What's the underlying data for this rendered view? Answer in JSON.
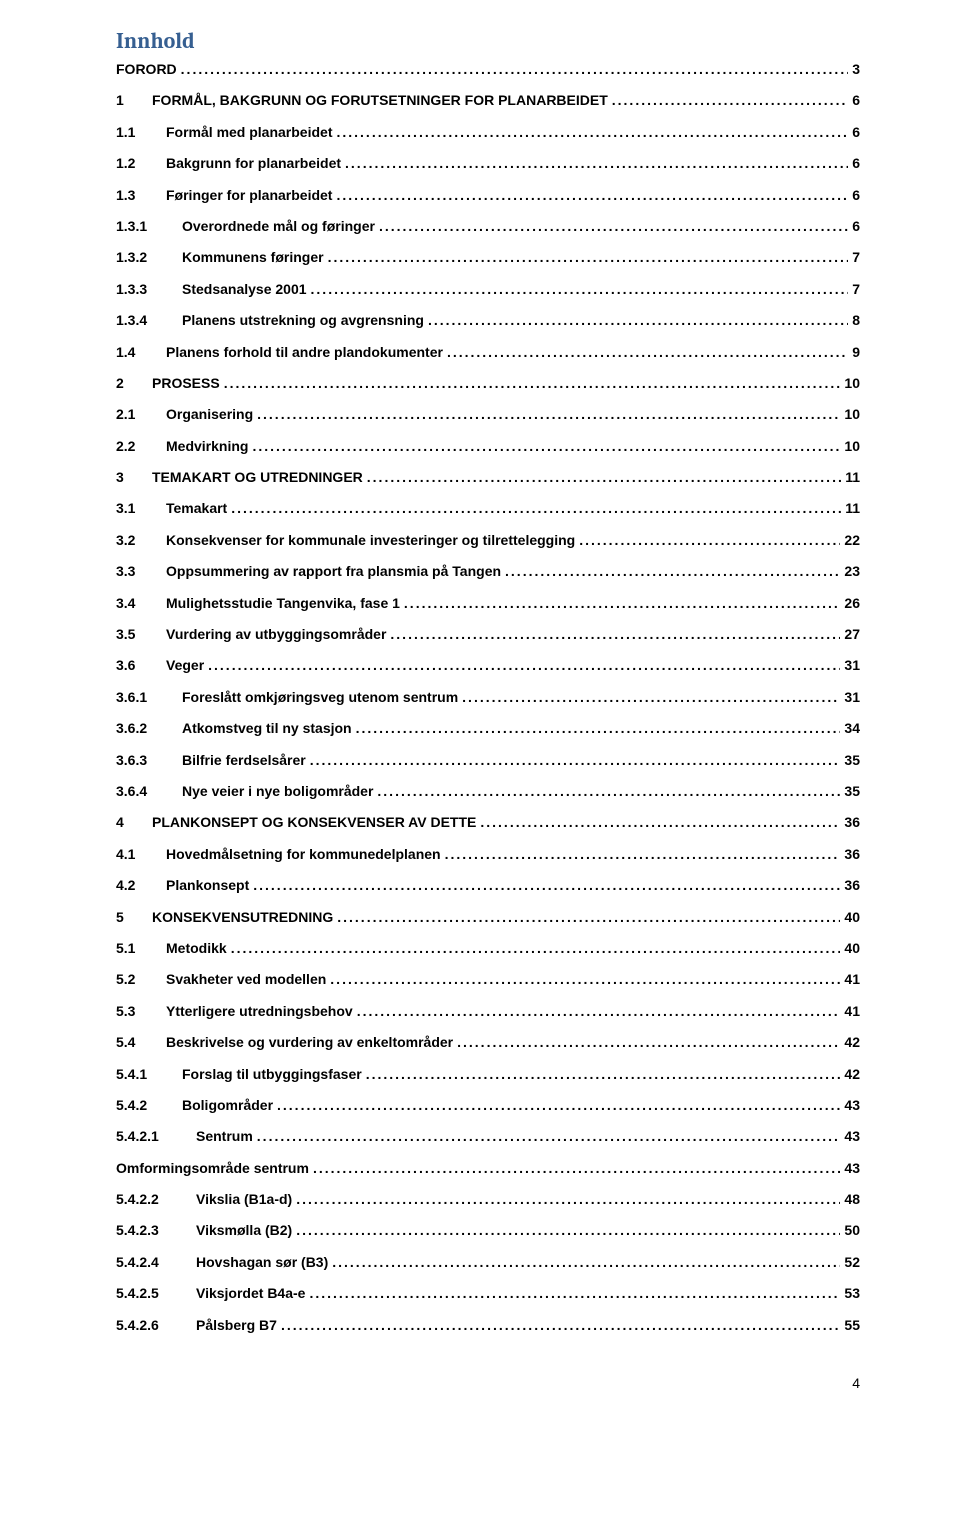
{
  "title": "Innhold",
  "footer_page": "4",
  "colors": {
    "title_color": "#365f91",
    "text_color": "#000000",
    "background": "#ffffff"
  },
  "typography": {
    "title_font": "Cambria",
    "body_font": "Arial",
    "title_size_pt": 17,
    "body_size_pt": 10.5,
    "body_weight": "bold"
  },
  "entries": [
    {
      "num": "",
      "label": "FORORD",
      "page": "3",
      "level": "level-0"
    },
    {
      "num": "1",
      "label": "FORMÅL, BAKGRUNN OG FORUTSETNINGER FOR PLANARBEIDET",
      "page": "6",
      "level": "level-1"
    },
    {
      "num": "1.1",
      "label": "Formål med planarbeidet",
      "page": "6",
      "level": "level-2"
    },
    {
      "num": "1.2",
      "label": "Bakgrunn for planarbeidet",
      "page": "6",
      "level": "level-2"
    },
    {
      "num": "1.3",
      "label": "Føringer for planarbeidet",
      "page": "6",
      "level": "level-2"
    },
    {
      "num": "1.3.1",
      "label": "Overordnede mål og føringer",
      "page": "6",
      "level": "level-3"
    },
    {
      "num": "1.3.2",
      "label": "Kommunens føringer",
      "page": "7",
      "level": "level-3"
    },
    {
      "num": "1.3.3",
      "label": "Stedsanalyse 2001",
      "page": "7",
      "level": "level-3"
    },
    {
      "num": "1.3.4",
      "label": "Planens utstrekning og avgrensning",
      "page": "8",
      "level": "level-3"
    },
    {
      "num": "1.4",
      "label": "Planens forhold til andre plandokumenter",
      "page": "9",
      "level": "level-2"
    },
    {
      "num": "2",
      "label": "PROSESS",
      "page": "10",
      "level": "level-1"
    },
    {
      "num": "2.1",
      "label": "Organisering",
      "page": "10",
      "level": "level-2"
    },
    {
      "num": "2.2",
      "label": "Medvirkning",
      "page": "10",
      "level": "level-2"
    },
    {
      "num": "3",
      "label": "TEMAKART OG UTREDNINGER",
      "page": "11",
      "level": "level-1"
    },
    {
      "num": "3.1",
      "label": "Temakart",
      "page": "11",
      "level": "level-2"
    },
    {
      "num": "3.2",
      "label": "Konsekvenser for kommunale investeringer og tilrettelegging",
      "page": "22",
      "level": "level-2"
    },
    {
      "num": "3.3",
      "label": "Oppsummering av rapport fra plansmia på Tangen",
      "page": "23",
      "level": "level-2"
    },
    {
      "num": "3.4",
      "label": "Mulighetsstudie Tangenvika, fase 1",
      "page": "26",
      "level": "level-2"
    },
    {
      "num": "3.5",
      "label": "Vurdering av utbyggingsområder",
      "page": "27",
      "level": "level-2"
    },
    {
      "num": "3.6",
      "label": "Veger",
      "page": "31",
      "level": "level-2"
    },
    {
      "num": "3.6.1",
      "label": "Foreslått omkjøringsveg utenom sentrum",
      "page": "31",
      "level": "level-3"
    },
    {
      "num": "3.6.2",
      "label": "Atkomstveg til ny stasjon",
      "page": "34",
      "level": "level-3"
    },
    {
      "num": "3.6.3",
      "label": "Bilfrie ferdselsårer",
      "page": "35",
      "level": "level-3"
    },
    {
      "num": "3.6.4",
      "label": "Nye veier i nye boligområder",
      "page": "35",
      "level": "level-3"
    },
    {
      "num": "4",
      "label": "PLANKONSEPT OG KONSEKVENSER AV DETTE",
      "page": "36",
      "level": "level-1"
    },
    {
      "num": "4.1",
      "label": "Hovedmålsetning for kommunedelplanen",
      "page": "36",
      "level": "level-2"
    },
    {
      "num": "4.2",
      "label": "Plankonsept",
      "page": "36",
      "level": "level-2"
    },
    {
      "num": "5",
      "label": "KONSEKVENSUTREDNING",
      "page": "40",
      "level": "level-1"
    },
    {
      "num": "5.1",
      "label": "Metodikk",
      "page": "40",
      "level": "level-2"
    },
    {
      "num": "5.2",
      "label": "Svakheter ved modellen",
      "page": "41",
      "level": "level-2"
    },
    {
      "num": "5.3",
      "label": "Ytterligere utredningsbehov",
      "page": "41",
      "level": "level-2"
    },
    {
      "num": "5.4",
      "label": "Beskrivelse og vurdering av enkeltområder",
      "page": "42",
      "level": "level-2"
    },
    {
      "num": "5.4.1",
      "label": "Forslag til utbyggingsfaser",
      "page": "42",
      "level": "level-3"
    },
    {
      "num": "5.4.2",
      "label": "Boligområder",
      "page": "43",
      "level": "level-3"
    },
    {
      "num": "5.4.2.1",
      "label": "Sentrum",
      "page": "43",
      "level": "level-4"
    },
    {
      "num": "",
      "label": "Omformingsområde sentrum",
      "page": "43",
      "level": "plain"
    },
    {
      "num": "5.4.2.2",
      "label": "Vikslia (B1a-d)",
      "page": "48",
      "level": "level-4"
    },
    {
      "num": "5.4.2.3",
      "label": "Viksmølla (B2)",
      "page": "50",
      "level": "level-4"
    },
    {
      "num": "5.4.2.4",
      "label": "Hovshagan sør (B3)",
      "page": "52",
      "level": "level-4"
    },
    {
      "num": "5.4.2.5",
      "label": "Viksjordet B4a-e",
      "page": "53",
      "level": "level-4"
    },
    {
      "num": "5.4.2.6",
      "label": "Pålsberg B7",
      "page": "55",
      "level": "level-4"
    }
  ]
}
